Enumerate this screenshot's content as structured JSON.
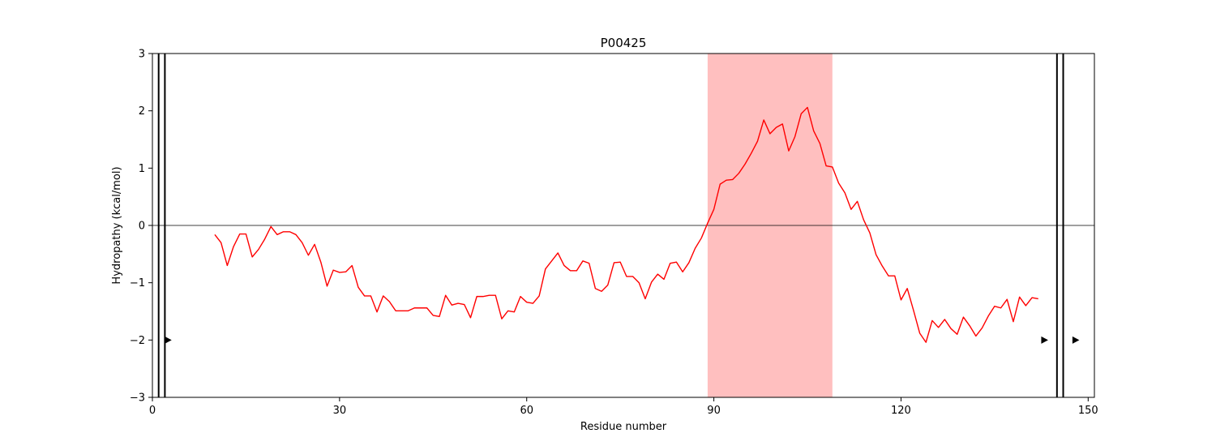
{
  "chart_data": {
    "type": "line",
    "title": "P00425",
    "xlabel": "Residue number",
    "ylabel": "Hydropathy (kcal/mol)",
    "xlim": [
      0,
      151
    ],
    "ylim": [
      -3,
      3
    ],
    "xticks": [
      0,
      30,
      60,
      90,
      120,
      150
    ],
    "yticks": [
      -3,
      -2,
      -1,
      0,
      1,
      2,
      3
    ],
    "xtick_labels": [
      "0",
      "30",
      "60",
      "90",
      "120",
      "150"
    ],
    "ytick_labels": [
      "−3",
      "−2",
      "−1",
      "0",
      "1",
      "2",
      "3"
    ],
    "grid": false,
    "zero_line": 0,
    "highlight_region": {
      "x_start": 89,
      "x_end": 109,
      "color": "#ffbfbf"
    },
    "vertical_lines": [
      1,
      2,
      145,
      146
    ],
    "markers": [
      {
        "x": 2.5,
        "y": -2,
        "symbol": "right-triangle"
      },
      {
        "x": 143,
        "y": -2,
        "symbol": "right-triangle"
      },
      {
        "x": 148,
        "y": -2,
        "symbol": "right-triangle"
      }
    ],
    "series": [
      {
        "color": "#ff0000",
        "x": [
          10,
          11,
          12,
          13,
          14,
          15,
          16,
          17,
          18,
          19,
          20,
          21,
          22,
          23,
          24,
          25,
          26,
          27,
          28,
          29,
          30,
          31,
          32,
          33,
          34,
          35,
          36,
          37,
          38,
          39,
          40,
          41,
          42,
          43,
          44,
          45,
          46,
          47,
          48,
          49,
          50,
          51,
          52,
          53,
          54,
          55,
          56,
          57,
          58,
          59,
          60,
          61,
          62,
          63,
          64,
          65,
          66,
          67,
          68,
          69,
          70,
          71,
          72,
          73,
          74,
          75,
          76,
          77,
          78,
          79,
          80,
          81,
          82,
          83,
          84,
          85,
          86,
          87,
          88,
          89,
          90,
          91,
          92,
          93,
          94,
          95,
          96,
          97,
          98,
          99,
          100,
          101,
          102,
          103,
          104,
          105,
          106,
          107,
          108,
          109,
          110,
          111,
          112,
          113,
          114,
          115,
          116,
          117,
          118,
          119,
          120,
          121,
          122,
          123,
          124,
          125,
          126,
          127,
          128,
          129,
          130,
          131,
          132,
          133,
          134,
          135,
          136,
          137,
          138,
          139,
          140,
          141,
          142
        ],
        "y": [
          -0.16,
          -0.3,
          -0.7,
          -0.37,
          -0.15,
          -0.15,
          -0.55,
          -0.42,
          -0.24,
          -0.02,
          -0.16,
          -0.11,
          -0.11,
          -0.16,
          -0.3,
          -0.52,
          -0.33,
          -0.64,
          -1.06,
          -0.78,
          -0.82,
          -0.81,
          -0.7,
          -1.08,
          -1.23,
          -1.23,
          -1.51,
          -1.23,
          -1.33,
          -1.49,
          -1.49,
          -1.49,
          -1.44,
          -1.44,
          -1.44,
          -1.57,
          -1.59,
          -1.22,
          -1.39,
          -1.36,
          -1.38,
          -1.61,
          -1.24,
          -1.24,
          -1.22,
          -1.22,
          -1.63,
          -1.49,
          -1.51,
          -1.24,
          -1.34,
          -1.36,
          -1.23,
          -0.76,
          -0.62,
          -0.48,
          -0.7,
          -0.79,
          -0.79,
          -0.62,
          -0.66,
          -1.1,
          -1.15,
          -1.04,
          -0.65,
          -0.64,
          -0.89,
          -0.89,
          -1.0,
          -1.28,
          -0.99,
          -0.85,
          -0.94,
          -0.66,
          -0.64,
          -0.81,
          -0.65,
          -0.4,
          -0.22,
          0.04,
          0.28,
          0.72,
          0.79,
          0.8,
          0.91,
          1.07,
          1.26,
          1.47,
          1.84,
          1.6,
          1.71,
          1.77,
          1.3,
          1.55,
          1.95,
          2.06,
          1.65,
          1.43,
          1.04,
          1.02,
          0.74,
          0.57,
          0.28,
          0.42,
          0.1,
          -0.13,
          -0.51,
          -0.71,
          -0.88,
          -0.88,
          -1.3,
          -1.1,
          -1.48,
          -1.88,
          -2.04,
          -1.66,
          -1.78,
          -1.64,
          -1.8,
          -1.9,
          -1.6,
          -1.75,
          -1.93,
          -1.79,
          -1.58,
          -1.41,
          -1.44,
          -1.29,
          -1.68,
          -1.25,
          -1.4,
          -1.26,
          -1.28
        ]
      }
    ]
  }
}
